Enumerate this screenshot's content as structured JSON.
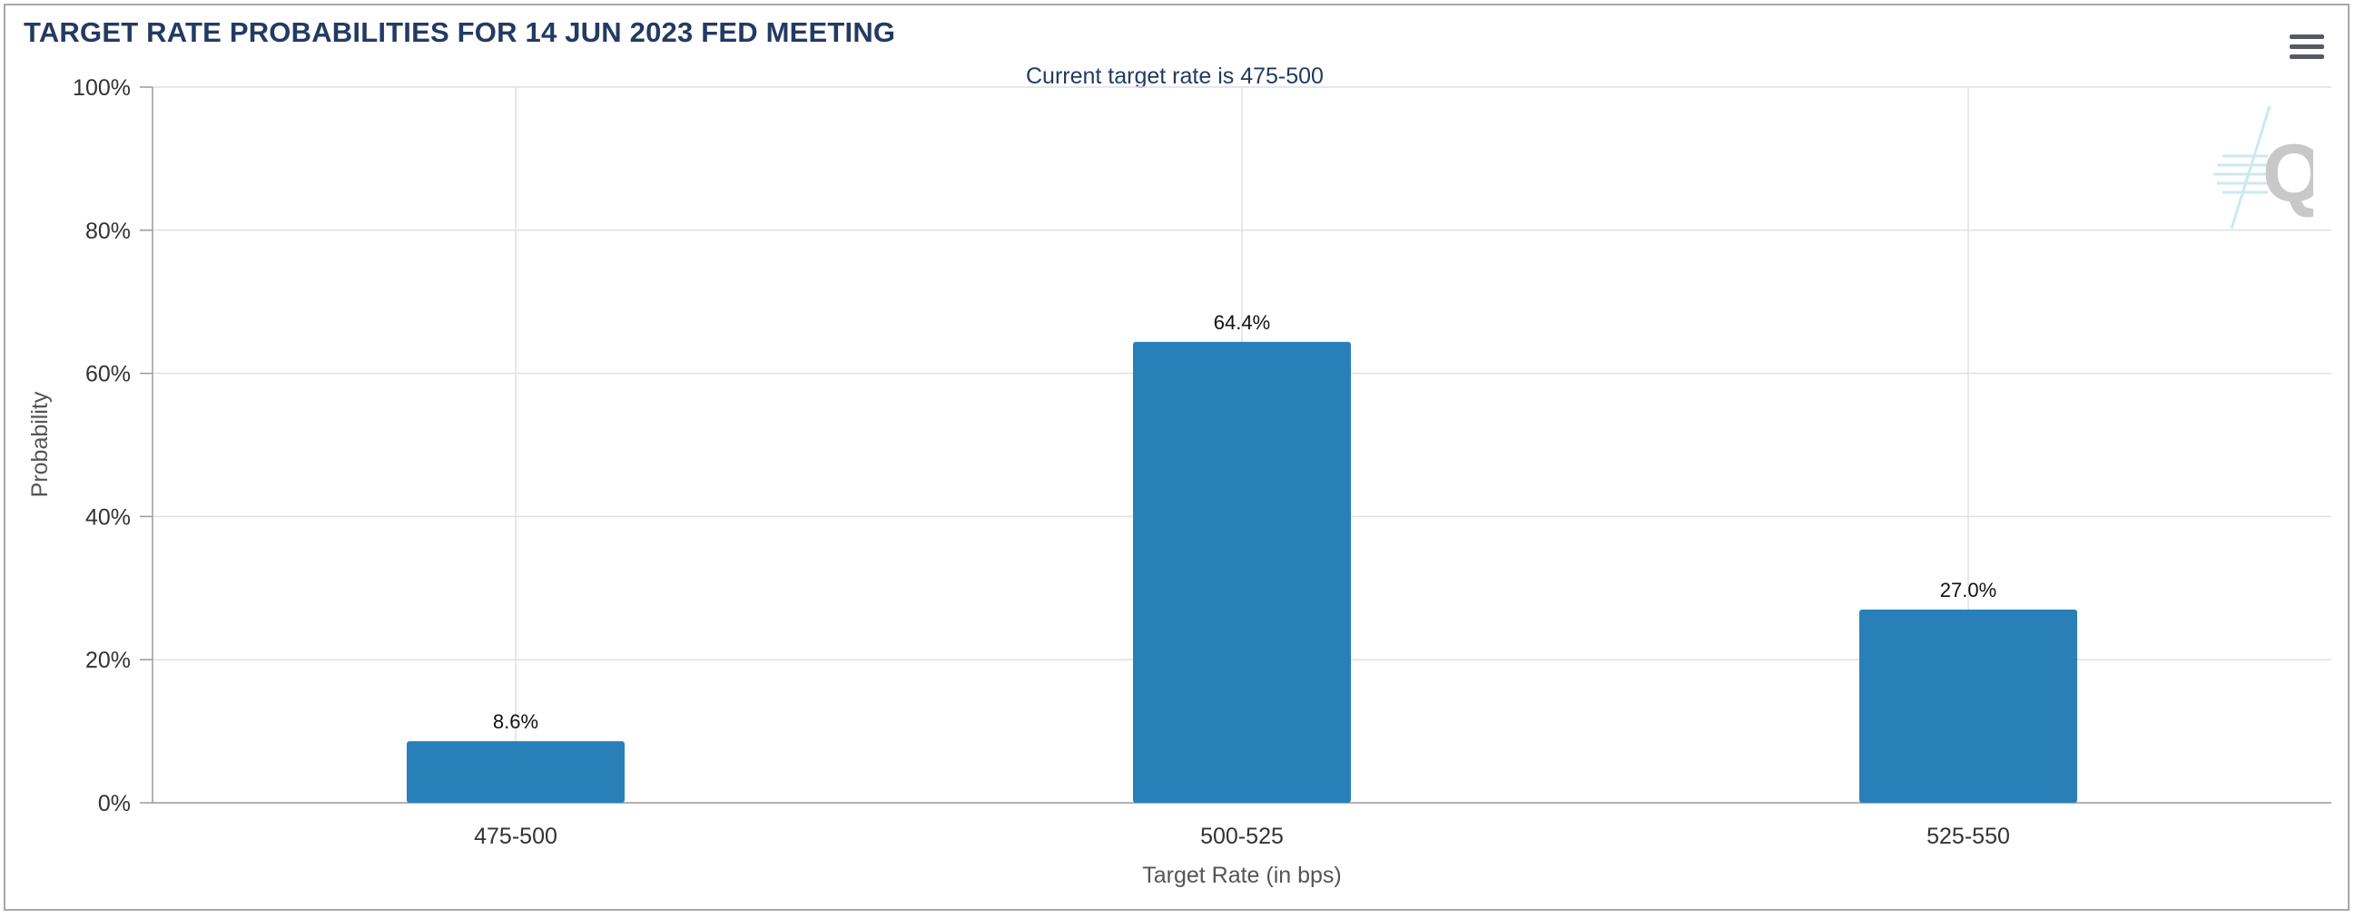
{
  "chart_data": {
    "type": "bar",
    "title": "TARGET RATE PROBABILITIES FOR 14 JUN 2023 FED MEETING",
    "subtitle": "Current target rate is 475-500",
    "xlabel": "Target Rate (in bps)",
    "ylabel": "Probability",
    "categories": [
      "475-500",
      "500-525",
      "525-550"
    ],
    "values": [
      8.6,
      64.4,
      27.0
    ],
    "data_labels": [
      "8.6%",
      "64.4%",
      "27.0%"
    ],
    "ylim": [
      0,
      100
    ],
    "yticks": [
      0,
      20,
      40,
      60,
      80,
      100
    ],
    "ytick_labels": [
      "0%",
      "20%",
      "40%",
      "60%",
      "80%",
      "100%"
    ],
    "grid": true,
    "bar_color": "#2980b9"
  },
  "colors": {
    "title": "#233a63",
    "grid": "#e0e0e0",
    "axis": "#9a9a9a"
  },
  "icons": {
    "menu": "hamburger-menu-icon",
    "watermark": "logo-q-icon"
  }
}
